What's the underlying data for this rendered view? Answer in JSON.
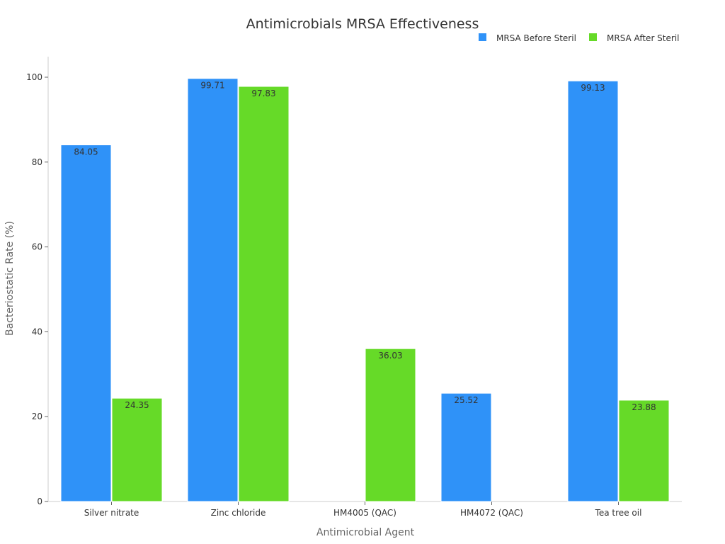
{
  "chart_data": {
    "type": "bar",
    "title": "Antimicrobials MRSA Effectiveness",
    "xlabel": "Antimicrobial Agent",
    "ylabel": "Bacteriostatic Rate (%)",
    "categories": [
      "Silver nitrate",
      "Zinc chloride",
      "HM4005 (QAC)",
      "HM4072 (QAC)",
      "Tea tree oil"
    ],
    "series": [
      {
        "name": "MRSA Before Steril",
        "color": "#2f92f8",
        "values": [
          84.05,
          99.71,
          null,
          25.52,
          99.13
        ]
      },
      {
        "name": "MRSA After Steril",
        "color": "#66da28",
        "values": [
          24.35,
          97.83,
          36.03,
          null,
          23.88
        ]
      }
    ],
    "ylim": [
      0,
      105
    ],
    "yticks": [
      0,
      20,
      40,
      60,
      80,
      100
    ],
    "grid": false,
    "legend": "top-right"
  }
}
